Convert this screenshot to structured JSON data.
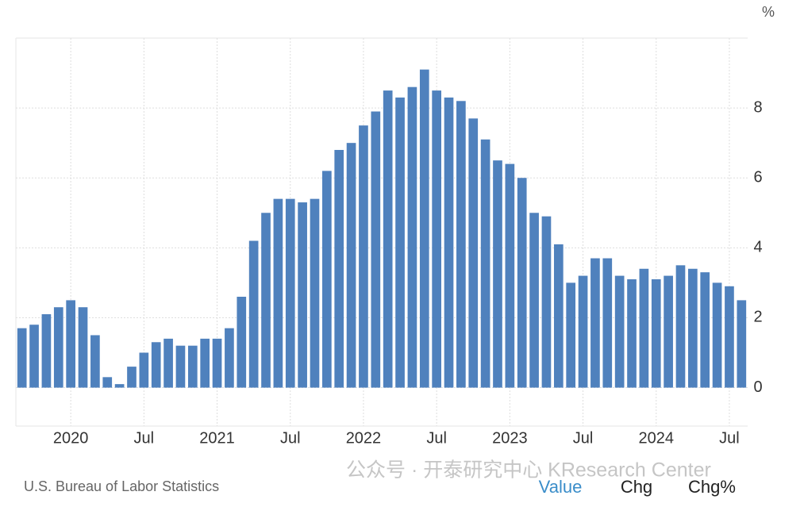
{
  "chart_data": {
    "type": "bar",
    "y_unit": "%",
    "categories": [
      null,
      null,
      null,
      null,
      "2020",
      null,
      null,
      null,
      null,
      null,
      "Jul",
      null,
      null,
      null,
      null,
      null,
      "2021",
      null,
      null,
      null,
      null,
      null,
      "Jul",
      null,
      null,
      null,
      null,
      null,
      "2022",
      null,
      null,
      null,
      null,
      null,
      "Jul",
      null,
      null,
      null,
      null,
      null,
      "2023",
      null,
      null,
      null,
      null,
      null,
      "Jul",
      null,
      null,
      null,
      null,
      null,
      "2024",
      null,
      null,
      null,
      null,
      null,
      "Jul",
      null
    ],
    "values": [
      1.7,
      1.8,
      2.1,
      2.3,
      2.5,
      2.3,
      1.5,
      0.3,
      0.1,
      0.6,
      1.0,
      1.3,
      1.4,
      1.2,
      1.2,
      1.4,
      1.4,
      1.7,
      2.6,
      4.2,
      5.0,
      5.4,
      5.4,
      5.3,
      5.4,
      6.2,
      6.8,
      7.0,
      7.5,
      7.9,
      8.5,
      8.3,
      8.6,
      9.1,
      8.5,
      8.3,
      8.2,
      7.7,
      7.1,
      6.5,
      6.4,
      6.0,
      5.0,
      4.9,
      4.1,
      3.0,
      3.2,
      3.7,
      3.7,
      3.2,
      3.1,
      3.4,
      3.1,
      3.2,
      3.5,
      3.4,
      3.3,
      3.0,
      2.9,
      2.5
    ],
    "color": "#4f81bd",
    "ylim": [
      -1.1,
      10
    ],
    "yticks": [
      0,
      2,
      4,
      6,
      8
    ],
    "grid": true,
    "source": "U.S. Bureau of Labor Statistics"
  },
  "watermark": "公众号 · 开泰研究中心 KResearch Center",
  "buttons": [
    "Value",
    "Chg",
    "Chg%"
  ]
}
